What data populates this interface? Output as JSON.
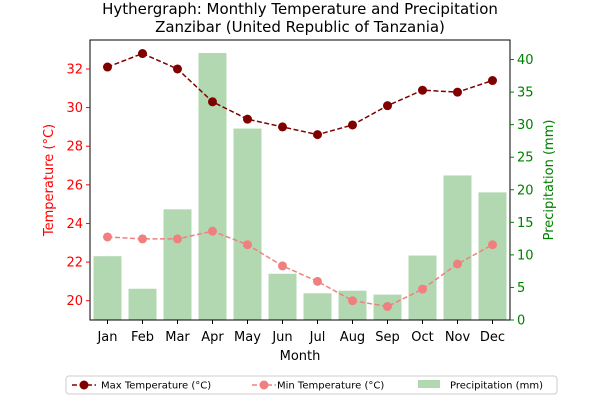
{
  "chart_data": {
    "type": "line+bar",
    "title": "Hythergraph: Monthly Temperature and Precipitation",
    "subtitle": "Zanzibar (United Republic of Tanzania)",
    "xlabel": "Month",
    "ylabel_left": "Temperature (°C)",
    "ylabel_right": "Precipitation (mm)",
    "categories": [
      "Jan",
      "Feb",
      "Mar",
      "Apr",
      "May",
      "Jun",
      "Jul",
      "Aug",
      "Sep",
      "Oct",
      "Nov",
      "Dec"
    ],
    "ylim_left": [
      19.0,
      33.5
    ],
    "ylim_right": [
      0,
      43
    ],
    "yticks_left": [
      20,
      22,
      24,
      26,
      28,
      30,
      32
    ],
    "yticks_right": [
      0,
      5,
      10,
      15,
      20,
      25,
      30,
      35,
      40
    ],
    "series": [
      {
        "name": "Max Temperature (°C)",
        "axis": "left",
        "kind": "line",
        "color": "#800000",
        "values": [
          32.1,
          32.8,
          32.0,
          30.3,
          29.4,
          29.0,
          28.6,
          29.1,
          30.1,
          30.9,
          30.8,
          31.4
        ]
      },
      {
        "name": "Min Temperature (°C)",
        "axis": "left",
        "kind": "line",
        "color": "#f08080",
        "values": [
          23.3,
          23.2,
          23.2,
          23.6,
          22.9,
          21.8,
          21.0,
          20.0,
          19.7,
          20.6,
          21.9,
          22.9
        ]
      },
      {
        "name": "Precipitation (mm)",
        "axis": "right",
        "kind": "bar",
        "color": "#b2d8b2",
        "values": [
          9.8,
          4.8,
          17.0,
          41.0,
          29.4,
          7.1,
          4.1,
          4.5,
          3.9,
          9.9,
          22.2,
          19.6
        ]
      }
    ],
    "legend": {
      "placement": "bottom-center",
      "entries": [
        "Max Temperature (°C)",
        "Min Temperature (°C)",
        "Precipitation (mm)"
      ]
    },
    "colors": {
      "axis_left": "#ff0000",
      "axis_right": "#008000",
      "text": "#000000"
    }
  }
}
